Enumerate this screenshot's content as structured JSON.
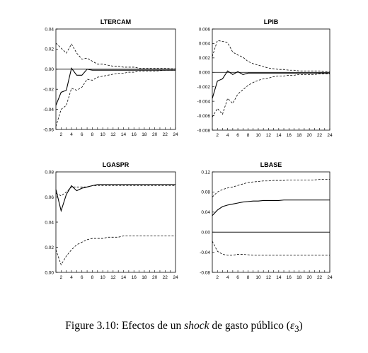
{
  "caption": {
    "prefix": "Figure 3.10:",
    "text_before": "Efectos de un",
    "text_emph": "shock",
    "text_after": "de gasto público (",
    "symbol": "ε",
    "subscript": "3",
    "close": ")"
  },
  "chart_data": [
    {
      "type": "line",
      "title": "LTERCAM",
      "x": [
        1,
        2,
        3,
        4,
        5,
        6,
        7,
        8,
        9,
        10,
        11,
        12,
        13,
        14,
        15,
        16,
        17,
        18,
        19,
        20,
        21,
        22,
        23,
        24
      ],
      "xticks": [
        2,
        4,
        6,
        8,
        10,
        12,
        14,
        16,
        18,
        20,
        22,
        24
      ],
      "ylim": [
        -0.06,
        0.04
      ],
      "yticks": [
        "0.04",
        "0.02",
        "0.00",
        "-0.02",
        "-0.04",
        "-0.06"
      ],
      "zero_line": true,
      "series": [
        {
          "style": "solid",
          "values": [
            -0.036,
            -0.023,
            -0.021,
            0.001,
            -0.006,
            -0.006,
            0.0,
            -0.001,
            -0.001,
            -0.001,
            -0.001,
            -0.001,
            -0.001,
            -0.001,
            -0.001,
            -0.001,
            -0.001,
            -0.001,
            -0.001,
            -0.001,
            -0.001,
            -0.001,
            -0.001,
            -0.001
          ]
        },
        {
          "style": "dashed",
          "values": [
            0.026,
            0.021,
            0.016,
            0.025,
            0.016,
            0.01,
            0.011,
            0.008,
            0.005,
            0.005,
            0.004,
            0.003,
            0.003,
            0.002,
            0.002,
            0.002,
            0.001,
            0.001,
            0.001,
            0.001,
            0.001,
            0.001,
            0.0005,
            0.0005
          ]
        },
        {
          "style": "dashed",
          "values": [
            -0.057,
            -0.04,
            -0.036,
            -0.019,
            -0.021,
            -0.018,
            -0.01,
            -0.011,
            -0.008,
            -0.007,
            -0.006,
            -0.005,
            -0.004,
            -0.004,
            -0.003,
            -0.003,
            -0.002,
            -0.002,
            -0.002,
            -0.002,
            -0.0015,
            -0.001,
            -0.001,
            -0.001
          ]
        }
      ]
    },
    {
      "type": "line",
      "title": "LPIB",
      "x": [
        1,
        2,
        3,
        4,
        5,
        6,
        7,
        8,
        9,
        10,
        11,
        12,
        13,
        14,
        15,
        16,
        17,
        18,
        19,
        20,
        21,
        22,
        23,
        24
      ],
      "xticks": [
        2,
        4,
        6,
        8,
        10,
        12,
        14,
        16,
        18,
        20,
        22,
        24
      ],
      "ylim": [
        -0.008,
        0.006
      ],
      "yticks": [
        "0.006",
        "0.004",
        "0.002",
        "0.000",
        "-0.002",
        "-0.004",
        "-0.006",
        "-0.008"
      ],
      "zero_line": true,
      "series": [
        {
          "style": "solid",
          "values": [
            -0.0036,
            -0.0012,
            -0.0009,
            0.0002,
            -0.0003,
            0.0001,
            -0.0003,
            -0.0001,
            -0.0001,
            -0.0001,
            -0.0001,
            -0.0001,
            -0.0001,
            -0.0001,
            -0.0001,
            -0.0001,
            -0.0001,
            -0.0001,
            -0.0001,
            -0.0001,
            -0.0001,
            -0.0001,
            -0.0001,
            -0.0001
          ]
        },
        {
          "style": "dashed",
          "values": [
            0.0022,
            0.0044,
            0.0043,
            0.0041,
            0.0028,
            0.0024,
            0.0021,
            0.0015,
            0.0012,
            0.001,
            0.0008,
            0.0006,
            0.0005,
            0.0004,
            0.0004,
            0.0003,
            0.0003,
            0.0002,
            0.0002,
            0.0002,
            0.0002,
            0.0002,
            0.0001,
            0.0001
          ]
        },
        {
          "style": "dashed",
          "values": [
            -0.0062,
            -0.005,
            -0.0058,
            -0.0036,
            -0.0043,
            -0.003,
            -0.0024,
            -0.0018,
            -0.0014,
            -0.0011,
            -0.0009,
            -0.0008,
            -0.0006,
            -0.0005,
            -0.0005,
            -0.0004,
            -0.0004,
            -0.0003,
            -0.0003,
            -0.0003,
            -0.0003,
            -0.0002,
            -0.0002,
            -0.0002
          ]
        }
      ]
    },
    {
      "type": "line",
      "title": "LGASPR",
      "x": [
        1,
        2,
        3,
        4,
        5,
        6,
        7,
        8,
        9,
        10,
        11,
        12,
        13,
        14,
        15,
        16,
        17,
        18,
        19,
        20,
        21,
        22,
        23,
        24
      ],
      "xticks": [
        2,
        4,
        6,
        8,
        10,
        12,
        14,
        16,
        18,
        20,
        22,
        24
      ],
      "ylim": [
        0.0,
        0.08
      ],
      "yticks": [
        "0.08",
        "0.06",
        "0.04",
        "0.02",
        "0.00"
      ],
      "zero_line": false,
      "series": [
        {
          "style": "solid",
          "values": [
            0.066,
            0.049,
            0.062,
            0.069,
            0.065,
            0.067,
            0.068,
            0.069,
            0.07,
            0.07,
            0.07,
            0.07,
            0.07,
            0.07,
            0.07,
            0.07,
            0.07,
            0.07,
            0.07,
            0.07,
            0.07,
            0.07,
            0.07,
            0.07
          ]
        },
        {
          "style": "dashed",
          "values": [
            0.063,
            0.061,
            0.064,
            0.068,
            0.068,
            0.068,
            0.068,
            0.069,
            0.069,
            0.069,
            0.069,
            0.069,
            0.069,
            0.069,
            0.069,
            0.069,
            0.069,
            0.069,
            0.069,
            0.069,
            0.069,
            0.069,
            0.069,
            0.069
          ]
        },
        {
          "style": "dashed",
          "values": [
            0.018,
            0.006,
            0.013,
            0.018,
            0.022,
            0.024,
            0.026,
            0.027,
            0.027,
            0.027,
            0.028,
            0.028,
            0.028,
            0.029,
            0.029,
            0.029,
            0.029,
            0.029,
            0.029,
            0.029,
            0.029,
            0.029,
            0.029,
            0.029
          ]
        }
      ]
    },
    {
      "type": "line",
      "title": "LBASE",
      "x": [
        1,
        2,
        3,
        4,
        5,
        6,
        7,
        8,
        9,
        10,
        11,
        12,
        13,
        14,
        15,
        16,
        17,
        18,
        19,
        20,
        21,
        22,
        23,
        24
      ],
      "xticks": [
        2,
        4,
        6,
        8,
        10,
        12,
        14,
        16,
        18,
        20,
        22,
        24
      ],
      "ylim": [
        -0.08,
        0.12
      ],
      "yticks": [
        "0.12",
        "0.08",
        "0.04",
        "0.00",
        "-0.04",
        "-0.08"
      ],
      "zero_line": true,
      "series": [
        {
          "style": "solid",
          "values": [
            0.033,
            0.044,
            0.051,
            0.054,
            0.056,
            0.058,
            0.06,
            0.061,
            0.062,
            0.062,
            0.063,
            0.063,
            0.063,
            0.063,
            0.064,
            0.064,
            0.064,
            0.064,
            0.064,
            0.064,
            0.064,
            0.064,
            0.064,
            0.064
          ]
        },
        {
          "style": "dashed",
          "values": [
            0.07,
            0.08,
            0.085,
            0.088,
            0.09,
            0.093,
            0.096,
            0.099,
            0.1,
            0.101,
            0.102,
            0.102,
            0.103,
            0.103,
            0.103,
            0.104,
            0.104,
            0.104,
            0.104,
            0.104,
            0.104,
            0.105,
            0.105,
            0.105
          ]
        },
        {
          "style": "dashed",
          "values": [
            -0.018,
            -0.038,
            -0.044,
            -0.046,
            -0.046,
            -0.044,
            -0.044,
            -0.045,
            -0.046,
            -0.046,
            -0.046,
            -0.046,
            -0.046,
            -0.046,
            -0.046,
            -0.046,
            -0.046,
            -0.046,
            -0.046,
            -0.046,
            -0.046,
            -0.046,
            -0.046,
            -0.046
          ]
        }
      ]
    }
  ]
}
